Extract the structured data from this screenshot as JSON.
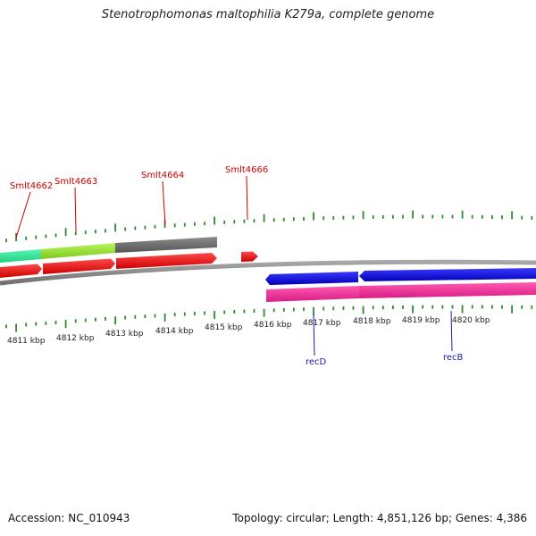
{
  "title": "Stenotrophomonas maltophilia K279a, complete genome",
  "footer": {
    "accession": "Accession: NC_010943",
    "stats": "Topology: circular; Length: 4,851,126 bp; Genes: 4,386"
  },
  "scale": {
    "unit": "kbp",
    "labels": [
      "4811 kbp",
      "4812 kbp",
      "4813 kbp",
      "4814 kbp",
      "4815 kbp",
      "4816 kbp",
      "4817 kbp",
      "4818 kbp",
      "4819 kbp",
      "4820 kbp"
    ]
  },
  "genes": {
    "forward_labels": [
      "Smlt4662",
      "Smlt4663",
      "Smlt4664",
      "Smlt4666"
    ],
    "reverse_labels": [
      "recD",
      "recB"
    ]
  },
  "colors": {
    "tick": "#2e8b2e",
    "backbone": "#888888",
    "forward_gene": "#ee0000",
    "reverse_gene": "#0000dd",
    "cds_pink": "#ee2b96",
    "cds_teal": "#2ee89b",
    "cds_lime": "#9ae62e",
    "cds_grey": "#6e6e6e",
    "forward_label": "#cc0000",
    "reverse_label": "#1a1aaa"
  }
}
